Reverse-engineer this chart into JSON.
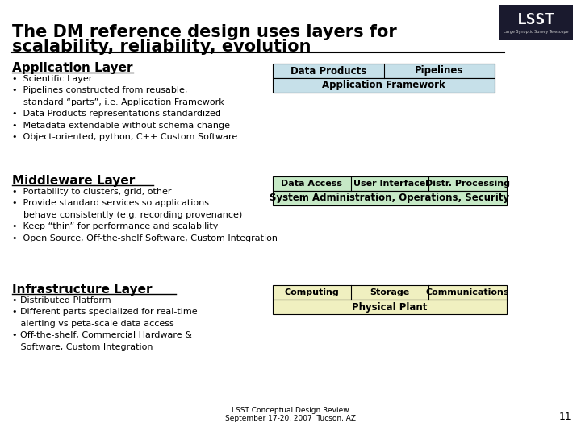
{
  "bg_color": "#ffffff",
  "title_line1": "The DM reference design uses layers for",
  "title_line2": "scalability, reliability, evolution",
  "app_layer_title": "Application Layer",
  "app_layer_bullets": [
    "•  Scientific Layer",
    "•  Pipelines constructed from reusable,\n    standard “parts”, i.e. Application Framework",
    "•  Data Products representations standardized",
    "•  Metadata extendable without schema change",
    "•  Object-oriented, python, C++ Custom Software"
  ],
  "app_table_row1": [
    "Data Products",
    "Pipelines"
  ],
  "app_table_row2": [
    "Application Framework"
  ],
  "app_table_color": "#c6e0e9",
  "mid_layer_title": "Middleware Layer",
  "mid_layer_bullets": [
    "•  Portability to clusters, grid, other",
    "•  Provide standard services so applications\n    behave consistently (e.g. recording provenance)",
    "•  Keep “thin” for performance and scalability",
    "•  Open Source, Off-the-shelf Software, Custom Integration"
  ],
  "mid_table_row1": [
    "Data Access",
    "User Interface",
    "Distr. Processing"
  ],
  "mid_table_row2": [
    "System Administration, Operations, Security"
  ],
  "mid_table_color": "#c6e9c6",
  "inf_layer_title": "Infrastructure Layer",
  "inf_layer_bullets": [
    "• Distributed Platform",
    "• Different parts specialized for real-time\n   alerting vs peta-scale data access",
    "• Off-the-shelf, Commercial Hardware &\n   Software, Custom Integration"
  ],
  "inf_table_row1": [
    "Computing",
    "Storage",
    "Communications"
  ],
  "inf_table_row2": [
    "Physical Plant"
  ],
  "inf_table_color": "#f0f0c0",
  "footer": "LSST Conceptual Design Review\nSeptember 17-20, 2007  Tucson, AZ",
  "page_num": "11",
  "font_size_body": 8,
  "font_size_section": 11,
  "font_size_table": 8.5
}
